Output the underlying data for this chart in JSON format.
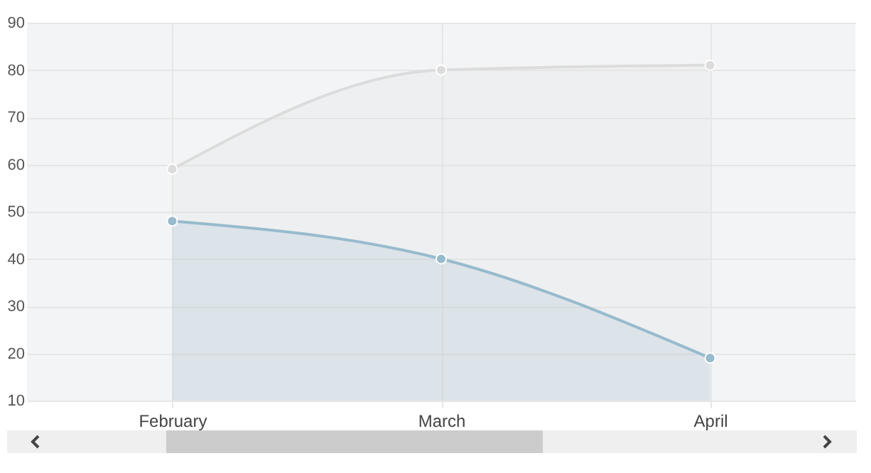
{
  "chart_data": {
    "type": "area",
    "categories": [
      "February",
      "March",
      "April"
    ],
    "series": [
      {
        "color": "#dcdcdc",
        "values": [
          59,
          80,
          81
        ]
      },
      {
        "color": "#97bbcd",
        "values": [
          48,
          40,
          19
        ]
      }
    ],
    "ylim": [
      10,
      90
    ],
    "yticks": [
      10,
      20,
      30,
      40,
      50,
      60,
      70,
      80,
      90
    ],
    "grid": true,
    "marker": "circle",
    "legend": false
  }
}
